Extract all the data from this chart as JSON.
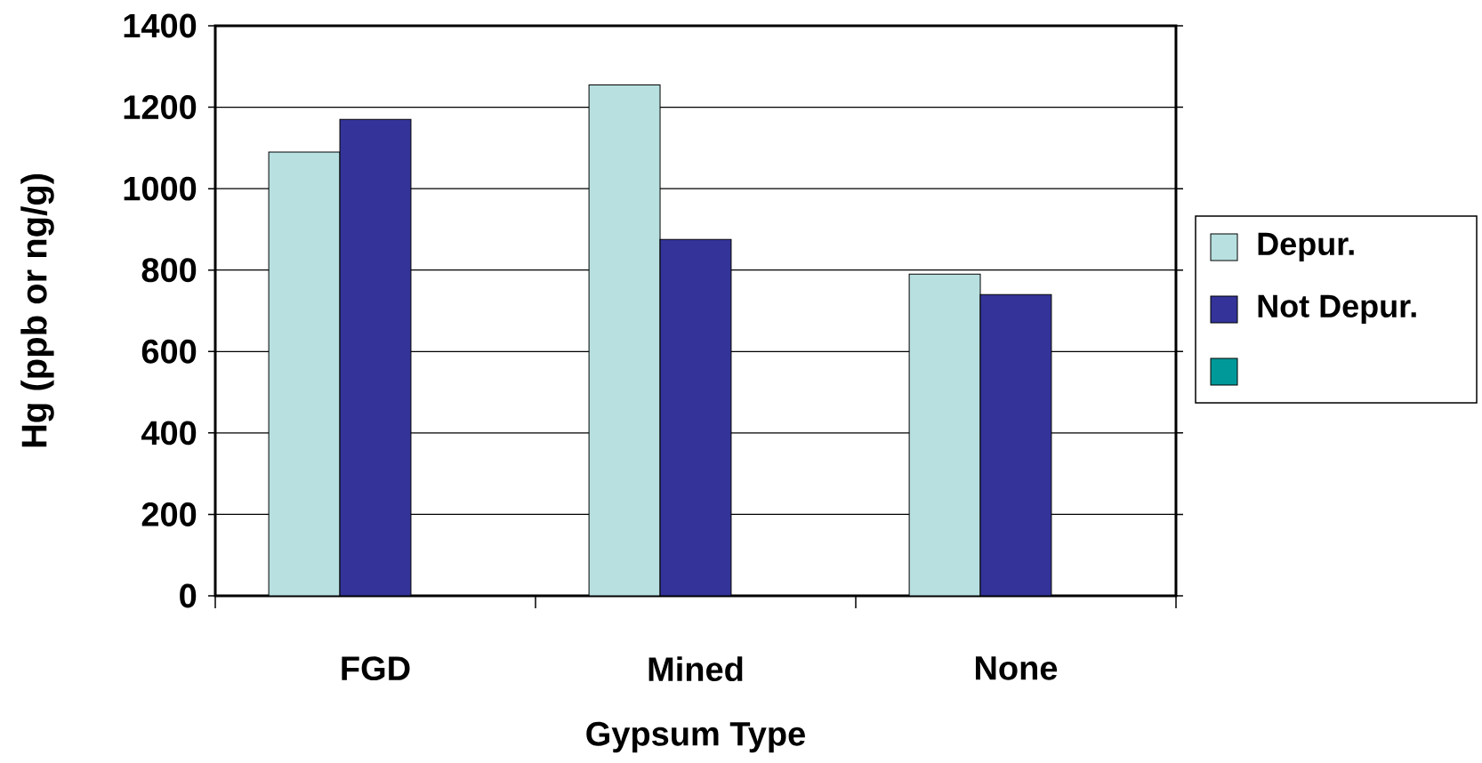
{
  "chart_data": {
    "type": "bar",
    "xlabel": "Gypsum Type",
    "ylabel": "Hg (ppb or ng/g)",
    "categories": [
      "FGD",
      "Mined",
      "None"
    ],
    "series": [
      {
        "name": "Depur.",
        "color": "#b8e0e0",
        "values": [
          1090,
          1255,
          790
        ]
      },
      {
        "name": "Not Depur.",
        "color": "#333399",
        "values": [
          1170,
          875,
          740
        ]
      },
      {
        "color": "#009999",
        "values": [
          null,
          null,
          null
        ]
      }
    ],
    "ylim": [
      0,
      1400
    ],
    "yticks": [
      0,
      200,
      400,
      600,
      800,
      1000,
      1200,
      1400
    ],
    "grid": "y",
    "legend": "right"
  }
}
